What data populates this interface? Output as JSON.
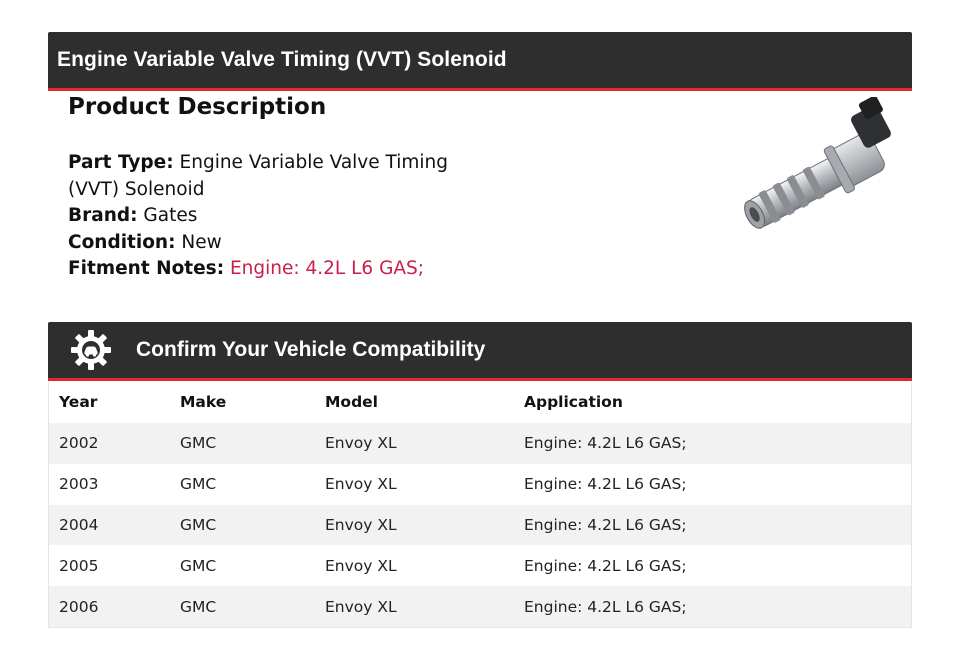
{
  "header": {
    "title": "Engine Variable Valve Timing (VVT) Solenoid"
  },
  "description": {
    "heading": "Product Description",
    "part_type_label": "Part Type:",
    "part_type_value": "Engine Variable Valve Timing (VVT) Solenoid",
    "brand_label": "Brand:",
    "brand_value": "Gates",
    "condition_label": "Condition:",
    "condition_value": "New",
    "fitment_label": "Fitment Notes:",
    "fitment_value": "Engine: 4.2L L6 GAS;",
    "fitment_color": "#c8204a"
  },
  "compat": {
    "title": "Confirm Your Vehicle Compatibility",
    "icon": "gear-car-icon",
    "columns": [
      "Year",
      "Make",
      "Model",
      "Application"
    ],
    "rows": [
      [
        "2002",
        "GMC",
        "Envoy XL",
        "Engine: 4.2L L6 GAS;"
      ],
      [
        "2003",
        "GMC",
        "Envoy XL",
        "Engine: 4.2L L6 GAS;"
      ],
      [
        "2004",
        "GMC",
        "Envoy XL",
        "Engine: 4.2L L6 GAS;"
      ],
      [
        "2005",
        "GMC",
        "Envoy XL",
        "Engine: 4.2L L6 GAS;"
      ],
      [
        "2006",
        "GMC",
        "Envoy XL",
        "Engine: 4.2L L6 GAS;"
      ]
    ]
  },
  "colors": {
    "banner_bg": "#2e2e2e",
    "banner_accent": "#e3262f"
  }
}
